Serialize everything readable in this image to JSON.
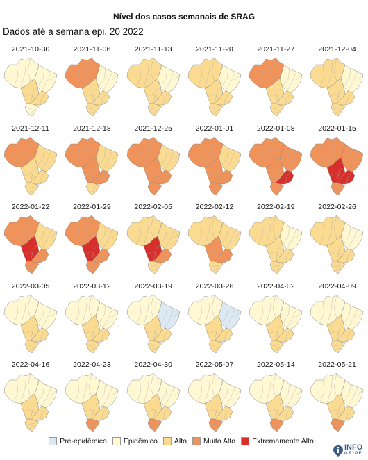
{
  "title": "Nível dos casos semanais de SRAG",
  "subtitle": "Dados até a semana epi. 20 2022",
  "colors": {
    "0": "#dce9f3",
    "1": "#fff8d2",
    "2": "#fbdb92",
    "3": "#f0935a",
    "4": "#d7302c"
  },
  "legend": [
    {
      "label": "Pré-epidêmico",
      "level": 0
    },
    {
      "label": "Epidêmico",
      "level": 1
    },
    {
      "label": "Alto",
      "level": 2
    },
    {
      "label": "Muito Alto",
      "level": 3
    },
    {
      "label": "Extremamente Alto",
      "level": 4
    }
  ],
  "regions": [
    "N",
    "NE",
    "CO",
    "SE",
    "S"
  ],
  "panels": [
    {
      "date": "2021-10-30",
      "levels": [
        1,
        1,
        2,
        2,
        1
      ]
    },
    {
      "date": "2021-11-06",
      "levels": [
        3,
        1,
        2,
        2,
        2
      ]
    },
    {
      "date": "2021-11-13",
      "levels": [
        2,
        1,
        2,
        2,
        2
      ]
    },
    {
      "date": "2021-11-20",
      "levels": [
        2,
        1,
        2,
        2,
        2
      ]
    },
    {
      "date": "2021-11-27",
      "levels": [
        3,
        1,
        2,
        2,
        2
      ]
    },
    {
      "date": "2021-12-04",
      "levels": [
        2,
        1,
        2,
        2,
        2
      ]
    },
    {
      "date": "2021-12-11",
      "levels": [
        3,
        2,
        2,
        2,
        2
      ]
    },
    {
      "date": "2021-12-18",
      "levels": [
        3,
        2,
        3,
        3,
        2
      ]
    },
    {
      "date": "2021-12-25",
      "levels": [
        3,
        2,
        3,
        3,
        3
      ]
    },
    {
      "date": "2022-01-01",
      "levels": [
        3,
        2,
        3,
        3,
        3
      ]
    },
    {
      "date": "2022-01-08",
      "levels": [
        3,
        3,
        3,
        4,
        3
      ]
    },
    {
      "date": "2022-01-15",
      "levels": [
        3,
        3,
        4,
        4,
        3
      ]
    },
    {
      "date": "2022-01-22",
      "levels": [
        3,
        2,
        4,
        3,
        3
      ]
    },
    {
      "date": "2022-01-29",
      "levels": [
        3,
        2,
        4,
        3,
        3
      ]
    },
    {
      "date": "2022-02-05",
      "levels": [
        2,
        2,
        4,
        3,
        2
      ]
    },
    {
      "date": "2022-02-12",
      "levels": [
        2,
        2,
        3,
        3,
        2
      ]
    },
    {
      "date": "2022-02-19",
      "levels": [
        2,
        1,
        2,
        2,
        2
      ]
    },
    {
      "date": "2022-02-26",
      "levels": [
        2,
        1,
        2,
        2,
        2
      ]
    },
    {
      "date": "2022-03-05",
      "levels": [
        1,
        1,
        2,
        2,
        2
      ]
    },
    {
      "date": "2022-03-12",
      "levels": [
        1,
        1,
        2,
        2,
        2
      ]
    },
    {
      "date": "2022-03-19",
      "levels": [
        1,
        0,
        2,
        2,
        2
      ]
    },
    {
      "date": "2022-03-26",
      "levels": [
        1,
        0,
        2,
        2,
        2
      ]
    },
    {
      "date": "2022-04-02",
      "levels": [
        1,
        1,
        2,
        2,
        2
      ]
    },
    {
      "date": "2022-04-09",
      "levels": [
        1,
        1,
        2,
        2,
        2
      ]
    },
    {
      "date": "2022-04-16",
      "levels": [
        1,
        1,
        2,
        2,
        2
      ]
    },
    {
      "date": "2022-04-23",
      "levels": [
        1,
        1,
        2,
        2,
        3
      ]
    },
    {
      "date": "2022-04-30",
      "levels": [
        1,
        1,
        2,
        2,
        3
      ]
    },
    {
      "date": "2022-05-07",
      "levels": [
        1,
        1,
        2,
        2,
        3
      ]
    },
    {
      "date": "2022-05-14",
      "levels": [
        1,
        1,
        2,
        2,
        3
      ]
    },
    {
      "date": "2022-05-21",
      "levels": [
        1,
        1,
        2,
        2,
        3
      ]
    }
  ],
  "logo": {
    "line1": "INFO",
    "line2": "GRIPE"
  }
}
